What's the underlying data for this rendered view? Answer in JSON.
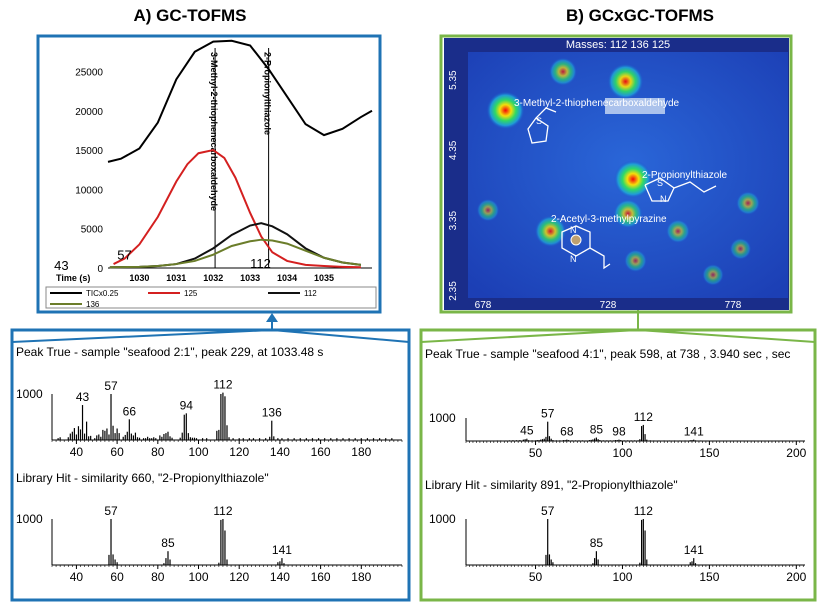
{
  "titles": {
    "left": "A) GC-TOFMS",
    "right": "B) GCxGC-TOFMS"
  },
  "colors": {
    "blue_frame": "#1f73b4",
    "green_frame": "#7ab648",
    "tic": "#000000",
    "m125": "#d42020",
    "m112": "#111111",
    "m136": "#6b7d2a"
  },
  "chart_data": [
    {
      "type": "line",
      "id": "gc_tofms_chromatogram",
      "xlabel": "Time (s)",
      "x_ticks": [
        1030,
        1031,
        1032,
        1033,
        1034,
        1035
      ],
      "y_ticks": [
        0,
        5000,
        10000,
        15000,
        20000,
        25000
      ],
      "xlim": [
        1029.15,
        1036.3
      ],
      "ylim": [
        0,
        29000
      ],
      "annotations": [
        {
          "text": "3-Methyl-2-thiophenecarboxaldehyde",
          "x": 1032.05,
          "orientation": "vertical"
        },
        {
          "text": "2-Propionylthiazole",
          "x": 1033.5,
          "orientation": "vertical"
        }
      ],
      "peak_labels": [
        {
          "text": "43",
          "x": 1029.1,
          "y": 0
        },
        {
          "text": "57",
          "x": 1029.4,
          "y": 800
        },
        {
          "text": "112",
          "x": 1033.0,
          "y": 0
        }
      ],
      "legend": [
        "TICx0.25",
        "125",
        "112",
        "136"
      ],
      "series": [
        {
          "name": "TICx0.25",
          "x": [
            1029.15,
            1029.5,
            1030,
            1030.5,
            1031,
            1031.5,
            1032,
            1032.5,
            1033,
            1033.5,
            1034,
            1034.5,
            1035,
            1035.5,
            1036,
            1036.3
          ],
          "values": [
            13500,
            13900,
            15200,
            18500,
            24000,
            27500,
            28800,
            28900,
            28300,
            25300,
            21800,
            18300,
            16900,
            17700,
            19200,
            20000
          ]
        },
        {
          "name": "125",
          "x": [
            1029.3,
            1029.6,
            1030,
            1030.5,
            1031,
            1031.3,
            1031.6,
            1032,
            1032.3,
            1032.6,
            1033,
            1033.3,
            1033.6,
            1034,
            1034.5,
            1035,
            1035.5,
            1036
          ],
          "values": [
            500,
            1200,
            3000,
            6500,
            11000,
            13200,
            14600,
            15000,
            14000,
            11500,
            7000,
            4000,
            2000,
            900,
            400,
            250,
            150,
            100
          ]
        },
        {
          "name": "112",
          "x": [
            1029.2,
            1030,
            1030.5,
            1031,
            1031.5,
            1032,
            1032.5,
            1033,
            1033.3,
            1033.6,
            1034,
            1034.5,
            1035,
            1035.5,
            1036
          ],
          "values": [
            100,
            150,
            250,
            500,
            1200,
            2500,
            4200,
            5400,
            5700,
            5300,
            4300,
            2500,
            1300,
            700,
            400
          ]
        },
        {
          "name": "136",
          "x": [
            1029.2,
            1030,
            1030.5,
            1031,
            1031.5,
            1032,
            1032.5,
            1033,
            1033.3,
            1033.6,
            1034,
            1034.5,
            1035,
            1035.5,
            1036
          ],
          "values": [
            100,
            150,
            250,
            500,
            900,
            1700,
            2800,
            3400,
            3600,
            3500,
            3100,
            2200,
            1300,
            700,
            400
          ]
        }
      ]
    },
    {
      "type": "heatmap",
      "id": "gcxgc_contour",
      "header": "Masses: 112 136 125",
      "x_ticks": [
        678,
        728,
        778
      ],
      "y_ticks": [
        2.35,
        3.35,
        4.35,
        5.35
      ],
      "xlim": [
        672,
        800
      ],
      "ylim": [
        2.25,
        5.75
      ],
      "compound_labels": [
        "3-Methyl-2-thiophenecarboxaldehyde",
        "2-Propionylthiazole",
        "2-Acetyl-3-methylpyrazine"
      ],
      "spots": [
        {
          "x": 710,
          "y": 5.47,
          "intensity": 0.55
        },
        {
          "x": 735,
          "y": 5.33,
          "intensity": 0.9
        },
        {
          "x": 687,
          "y": 4.92,
          "intensity": 1.0
        },
        {
          "x": 738,
          "y": 3.94,
          "intensity": 1.0
        },
        {
          "x": 736,
          "y": 3.45,
          "intensity": 0.6
        },
        {
          "x": 705,
          "y": 3.2,
          "intensity": 0.7
        },
        {
          "x": 680,
          "y": 3.5,
          "intensity": 0.3
        },
        {
          "x": 756,
          "y": 3.2,
          "intensity": 0.35
        },
        {
          "x": 784,
          "y": 3.6,
          "intensity": 0.35
        },
        {
          "x": 781,
          "y": 2.95,
          "intensity": 0.25
        },
        {
          "x": 770,
          "y": 2.58,
          "intensity": 0.25
        },
        {
          "x": 739,
          "y": 2.78,
          "intensity": 0.3
        }
      ]
    },
    {
      "type": "bar",
      "id": "gc_peak_true",
      "title": "Peak True - sample \"seafood 2:1\", peak 229, at 1033.48 s",
      "ymax_label": "1000",
      "x_ticks": [
        40,
        60,
        80,
        100,
        120,
        140,
        160,
        180
      ],
      "xlim": [
        28,
        200
      ],
      "peak_labels": [
        43,
        57,
        66,
        94,
        112,
        136
      ],
      "peaks": [
        [
          31,
          40
        ],
        [
          32,
          60
        ],
        [
          36,
          60
        ],
        [
          37,
          140
        ],
        [
          38,
          180
        ],
        [
          39,
          260
        ],
        [
          40,
          120
        ],
        [
          41,
          300
        ],
        [
          42,
          230
        ],
        [
          43,
          760
        ],
        [
          44,
          140
        ],
        [
          45,
          400
        ],
        [
          46,
          80
        ],
        [
          47,
          90
        ],
        [
          49,
          40
        ],
        [
          50,
          100
        ],
        [
          51,
          120
        ],
        [
          52,
          70
        ],
        [
          53,
          220
        ],
        [
          54,
          200
        ],
        [
          55,
          250
        ],
        [
          56,
          120
        ],
        [
          57,
          1000
        ],
        [
          58,
          310
        ],
        [
          59,
          150
        ],
        [
          60,
          250
        ],
        [
          61,
          150
        ],
        [
          63,
          70
        ],
        [
          64,
          110
        ],
        [
          65,
          180
        ],
        [
          66,
          450
        ],
        [
          67,
          140
        ],
        [
          68,
          100
        ],
        [
          69,
          160
        ],
        [
          70,
          60
        ],
        [
          71,
          50
        ],
        [
          73,
          40
        ],
        [
          74,
          40
        ],
        [
          75,
          70
        ],
        [
          76,
          40
        ],
        [
          77,
          40
        ],
        [
          78,
          60
        ],
        [
          79,
          40
        ],
        [
          81,
          100
        ],
        [
          82,
          70
        ],
        [
          83,
          130
        ],
        [
          84,
          150
        ],
        [
          85,
          180
        ],
        [
          86,
          80
        ],
        [
          87,
          50
        ],
        [
          91,
          50
        ],
        [
          92,
          160
        ],
        [
          93,
          550
        ],
        [
          94,
          580
        ],
        [
          95,
          150
        ],
        [
          96,
          60
        ],
        [
          97,
          50
        ],
        [
          98,
          50
        ],
        [
          99,
          40
        ],
        [
          102,
          40
        ],
        [
          104,
          40
        ],
        [
          109,
          200
        ],
        [
          110,
          220
        ],
        [
          111,
          1000
        ],
        [
          112,
          1030
        ],
        [
          113,
          950
        ],
        [
          114,
          320
        ],
        [
          115,
          60
        ],
        [
          117,
          40
        ],
        [
          120,
          40
        ],
        [
          122,
          40
        ],
        [
          125,
          40
        ],
        [
          127,
          40
        ],
        [
          130,
          40
        ],
        [
          133,
          40
        ],
        [
          135,
          70
        ],
        [
          136,
          420
        ],
        [
          137,
          80
        ],
        [
          139,
          40
        ],
        [
          141,
          40
        ],
        [
          144,
          40
        ],
        [
          147,
          40
        ],
        [
          150,
          40
        ],
        [
          153,
          40
        ],
        [
          156,
          40
        ],
        [
          159,
          40
        ],
        [
          162,
          40
        ],
        [
          165,
          40
        ],
        [
          168,
          40
        ],
        [
          171,
          40
        ],
        [
          174,
          40
        ],
        [
          177,
          40
        ],
        [
          180,
          40
        ],
        [
          183,
          40
        ],
        [
          186,
          40
        ],
        [
          189,
          40
        ],
        [
          192,
          40
        ],
        [
          195,
          40
        ]
      ]
    },
    {
      "type": "bar",
      "id": "gc_library_hit",
      "title": "Library Hit - similarity 660, \"2-Propionylthiazole\"",
      "ymax_label": "1000",
      "x_ticks": [
        40,
        60,
        80,
        100,
        120,
        140,
        160,
        180
      ],
      "xlim": [
        28,
        200
      ],
      "peak_labels": [
        57,
        85,
        112,
        141
      ],
      "peaks": [
        [
          56,
          220
        ],
        [
          57,
          1000
        ],
        [
          58,
          230
        ],
        [
          59,
          120
        ],
        [
          60,
          60
        ],
        [
          83,
          40
        ],
        [
          84,
          150
        ],
        [
          85,
          300
        ],
        [
          86,
          120
        ],
        [
          110,
          50
        ],
        [
          111,
          980
        ],
        [
          112,
          1000
        ],
        [
          113,
          750
        ],
        [
          114,
          120
        ],
        [
          139,
          60
        ],
        [
          140,
          80
        ],
        [
          141,
          150
        ],
        [
          142,
          40
        ]
      ]
    },
    {
      "type": "bar",
      "id": "gcxgc_peak_true",
      "title": "Peak True - sample \"seafood 4:1\", peak 598, at 738 , 3.940 sec , sec",
      "ymax_label": "1000",
      "x_ticks": [
        50,
        100,
        150,
        200
      ],
      "xlim": [
        10,
        205
      ],
      "peak_labels": [
        45,
        57,
        68,
        85,
        98,
        112,
        141
      ],
      "peaks": [
        [
          28,
          25
        ],
        [
          30,
          25
        ],
        [
          33,
          25
        ],
        [
          35,
          30
        ],
        [
          37,
          35
        ],
        [
          39,
          35
        ],
        [
          40,
          25
        ],
        [
          41,
          40
        ],
        [
          43,
          60
        ],
        [
          44,
          80
        ],
        [
          45,
          100
        ],
        [
          46,
          35
        ],
        [
          48,
          30
        ],
        [
          50,
          30
        ],
        [
          51,
          40
        ],
        [
          52,
          40
        ],
        [
          53,
          60
        ],
        [
          54,
          80
        ],
        [
          55,
          100
        ],
        [
          56,
          180
        ],
        [
          57,
          840
        ],
        [
          58,
          210
        ],
        [
          59,
          100
        ],
        [
          60,
          40
        ],
        [
          62,
          30
        ],
        [
          64,
          30
        ],
        [
          66,
          40
        ],
        [
          67,
          40
        ],
        [
          68,
          60
        ],
        [
          69,
          40
        ],
        [
          71,
          30
        ],
        [
          73,
          30
        ],
        [
          75,
          30
        ],
        [
          77,
          30
        ],
        [
          79,
          25
        ],
        [
          81,
          40
        ],
        [
          82,
          50
        ],
        [
          83,
          70
        ],
        [
          84,
          110
        ],
        [
          85,
          150
        ],
        [
          86,
          80
        ],
        [
          87,
          40
        ],
        [
          89,
          30
        ],
        [
          91,
          30
        ],
        [
          93,
          30
        ],
        [
          95,
          30
        ],
        [
          96,
          40
        ],
        [
          97,
          40
        ],
        [
          98,
          60
        ],
        [
          99,
          40
        ],
        [
          101,
          30
        ],
        [
          103,
          30
        ],
        [
          105,
          30
        ],
        [
          107,
          30
        ],
        [
          109,
          30
        ],
        [
          110,
          80
        ],
        [
          111,
          650
        ],
        [
          112,
          700
        ],
        [
          113,
          300
        ],
        [
          114,
          60
        ],
        [
          116,
          30
        ],
        [
          118,
          25
        ],
        [
          121,
          25
        ],
        [
          124,
          25
        ],
        [
          127,
          25
        ],
        [
          130,
          25
        ],
        [
          133,
          25
        ],
        [
          136,
          25
        ],
        [
          139,
          35
        ],
        [
          140,
          40
        ],
        [
          141,
          60
        ],
        [
          142,
          30
        ],
        [
          145,
          25
        ]
      ]
    },
    {
      "type": "bar",
      "id": "gcxgc_library_hit",
      "title": "Library Hit - similarity 891, \"2-Propionylthiazole\"",
      "ymax_label": "1000",
      "x_ticks": [
        50,
        100,
        150,
        200
      ],
      "xlim": [
        10,
        205
      ],
      "peak_labels": [
        57,
        85,
        112,
        141
      ],
      "peaks": [
        [
          56,
          220
        ],
        [
          57,
          1000
        ],
        [
          58,
          230
        ],
        [
          59,
          120
        ],
        [
          60,
          60
        ],
        [
          83,
          40
        ],
        [
          84,
          150
        ],
        [
          85,
          300
        ],
        [
          86,
          120
        ],
        [
          110,
          50
        ],
        [
          111,
          980
        ],
        [
          112,
          1000
        ],
        [
          113,
          750
        ],
        [
          114,
          120
        ],
        [
          139,
          60
        ],
        [
          140,
          80
        ],
        [
          141,
          150
        ],
        [
          142,
          40
        ]
      ]
    }
  ]
}
